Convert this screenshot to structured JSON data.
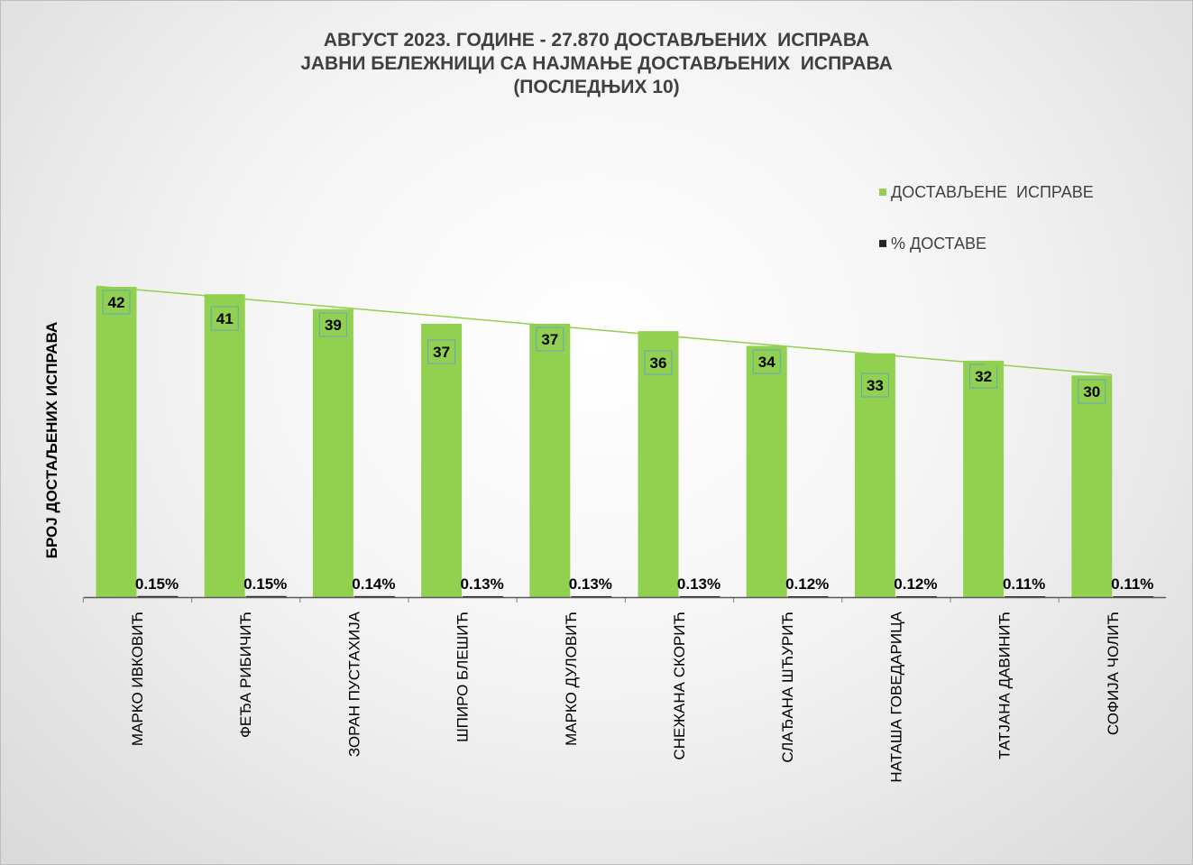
{
  "chart_data": {
    "type": "bar",
    "title_lines": [
      "АВГУСТ 2023. ГОДИНЕ - 27.870 ДОСТАВЉЕНИХ  ИСПРАВА",
      "ЈАВНИ БЕЛЕЖНИЦИ СА НАЈМАЊЕ ДОСТАВЉЕНИХ  ИСПРАВА",
      "(ПОСЛЕДЊИХ 10)"
    ],
    "ylabel": "БРОЈ ДОСТАЉЕНИХ ИСПРАВА",
    "xlabel": "",
    "categories": [
      "МАРКО ИВКОВИЋ",
      "ФЕЂА РИБИЧИЋ",
      "ЗОРАН ПУСТАХИЈА",
      "ШПИРО БЛЕШИЋ",
      "МАРКО ДУЛОВИЋ",
      "СНЕЖАНА СКОРИЋ",
      "СЛАЂАНА ШЋУРИЋ",
      "НАТАША ГОВЕДАРИЦА",
      "ТАТЈАНА ДАВИНИЋ",
      "СОФИЈА ЧОЛИЋ"
    ],
    "series": [
      {
        "name": "ДОСТАВЉЕНЕ  ИСПРАВЕ",
        "values": [
          42,
          41,
          39,
          37,
          37,
          36,
          34,
          33,
          32,
          30
        ],
        "color": "#92d050"
      },
      {
        "name": "% ДОСТАВЕ",
        "values": [
          0.15,
          0.15,
          0.14,
          0.13,
          0.13,
          0.13,
          0.12,
          0.12,
          0.11,
          0.11
        ],
        "labels": [
          "0.15%",
          "0.15%",
          "0.14%",
          "0.13%",
          "0.13%",
          "0.13%",
          "0.12%",
          "0.12%",
          "0.11%",
          "0.11%"
        ],
        "color": "#262626"
      }
    ],
    "trendline": {
      "series": "ДОСТАВЉЕНЕ  ИСПРАВЕ",
      "type": "linear",
      "color": "#92d050"
    },
    "ylim": [
      0,
      42
    ],
    "grid": false,
    "legend": "top-right"
  }
}
